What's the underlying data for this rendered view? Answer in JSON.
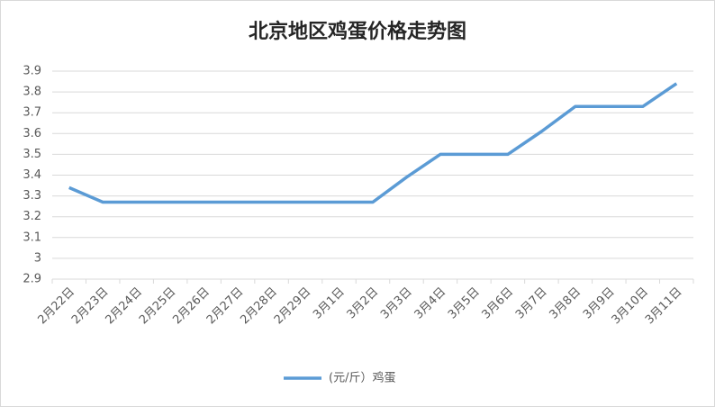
{
  "chart_data": {
    "type": "line",
    "title": "北京地区鸡蛋价格走势图",
    "categories": [
      "2月22日",
      "2月23日",
      "2月24日",
      "2月25日",
      "2月26日",
      "2月27日",
      "2月28日",
      "2月29日",
      "3月1日",
      "3月2日",
      "3月3日",
      "3月4日",
      "3月5日",
      "3月6日",
      "3月7日",
      "3月8日",
      "3月9日",
      "3月10日",
      "3月11日"
    ],
    "series": [
      {
        "name": "(元/斤）鸡蛋",
        "color": "#5b9bd5",
        "values": [
          3.34,
          3.27,
          3.27,
          3.27,
          3.27,
          3.27,
          3.27,
          3.27,
          3.27,
          3.27,
          3.39,
          3.5,
          3.5,
          3.5,
          3.61,
          3.73,
          3.73,
          3.73,
          3.84
        ]
      }
    ],
    "ylim": [
      2.9,
      3.9
    ],
    "yticks": [
      2.9,
      3,
      3.1,
      3.2,
      3.3,
      3.4,
      3.5,
      3.6,
      3.7,
      3.8,
      3.9
    ],
    "grid": true,
    "legend": "bottom"
  }
}
